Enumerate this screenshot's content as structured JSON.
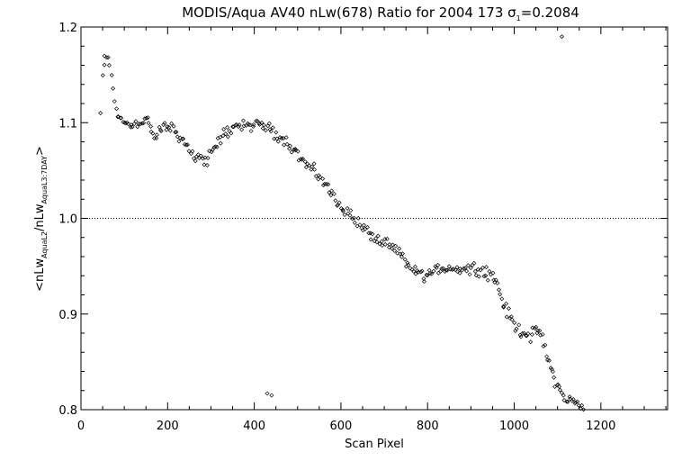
{
  "chart_data": {
    "type": "scatter",
    "title": {
      "prefix": "MODIS/Aqua AV40 nLw(678) Ratio for 2004 173 ",
      "sigma_symbol": "σ",
      "sigma_sub": "1",
      "sigma_value": "=0.2084"
    },
    "xlabel": "Scan Pixel",
    "ylabel": {
      "open": "<nLw",
      "num_sub": "AquaL2",
      "slash": "/nLw",
      "den_sub": "AquaL3:7DAY",
      "close": ">"
    },
    "xlim": [
      0,
      1354
    ],
    "ylim": [
      0.8,
      1.2
    ],
    "x_ticks": [
      0,
      200,
      400,
      600,
      800,
      1000,
      1200
    ],
    "x_tick_labels": [
      "0",
      "200",
      "400",
      "600",
      "800",
      "1000",
      "1200"
    ],
    "y_ticks": [
      0.8,
      0.9,
      1.0,
      1.1,
      1.2
    ],
    "y_tick_labels": [
      "0.8",
      "0.9",
      "1.0",
      "1.1",
      "1.2"
    ],
    "reference_line": {
      "y": 1.0,
      "style": "dotted"
    },
    "marker": "diamond",
    "color": "#000000",
    "trend": [
      [
        50,
        1.15
      ],
      [
        55,
        1.165
      ],
      [
        62,
        1.17
      ],
      [
        70,
        1.15
      ],
      [
        78,
        1.12
      ],
      [
        90,
        1.103
      ],
      [
        110,
        1.1
      ],
      [
        130,
        1.098
      ],
      [
        150,
        1.105
      ],
      [
        170,
        1.083
      ],
      [
        190,
        1.095
      ],
      [
        210,
        1.095
      ],
      [
        230,
        1.085
      ],
      [
        250,
        1.07
      ],
      [
        270,
        1.065
      ],
      [
        290,
        1.06
      ],
      [
        310,
        1.075
      ],
      [
        330,
        1.088
      ],
      [
        350,
        1.095
      ],
      [
        380,
        1.098
      ],
      [
        410,
        1.097
      ],
      [
        430,
        1.096
      ],
      [
        450,
        1.088
      ],
      [
        470,
        1.082
      ],
      [
        490,
        1.075
      ],
      [
        510,
        1.06
      ],
      [
        530,
        1.052
      ],
      [
        550,
        1.045
      ],
      [
        570,
        1.03
      ],
      [
        590,
        1.02
      ],
      [
        610,
        1.008
      ],
      [
        630,
        1.0
      ],
      [
        650,
        0.99
      ],
      [
        670,
        0.983
      ],
      [
        690,
        0.975
      ],
      [
        710,
        0.97
      ],
      [
        730,
        0.965
      ],
      [
        750,
        0.955
      ],
      [
        770,
        0.945
      ],
      [
        790,
        0.94
      ],
      [
        810,
        0.942
      ],
      [
        830,
        0.948
      ],
      [
        850,
        0.948
      ],
      [
        870,
        0.948
      ],
      [
        890,
        0.948
      ],
      [
        910,
        0.948
      ],
      [
        930,
        0.945
      ],
      [
        950,
        0.94
      ],
      [
        965,
        0.925
      ],
      [
        980,
        0.905
      ],
      [
        1000,
        0.888
      ],
      [
        1020,
        0.88
      ],
      [
        1040,
        0.878
      ],
      [
        1055,
        0.885
      ],
      [
        1065,
        0.872
      ],
      [
        1080,
        0.85
      ],
      [
        1095,
        0.83
      ],
      [
        1110,
        0.815
      ],
      [
        1130,
        0.81
      ],
      [
        1150,
        0.803
      ],
      [
        1165,
        0.798
      ]
    ],
    "points_per_interval": 6,
    "noise": 0.008,
    "outliers": [
      [
        45,
        1.11
      ],
      [
        430,
        0.817
      ],
      [
        440,
        0.815
      ],
      [
        1110,
        1.19
      ]
    ]
  }
}
